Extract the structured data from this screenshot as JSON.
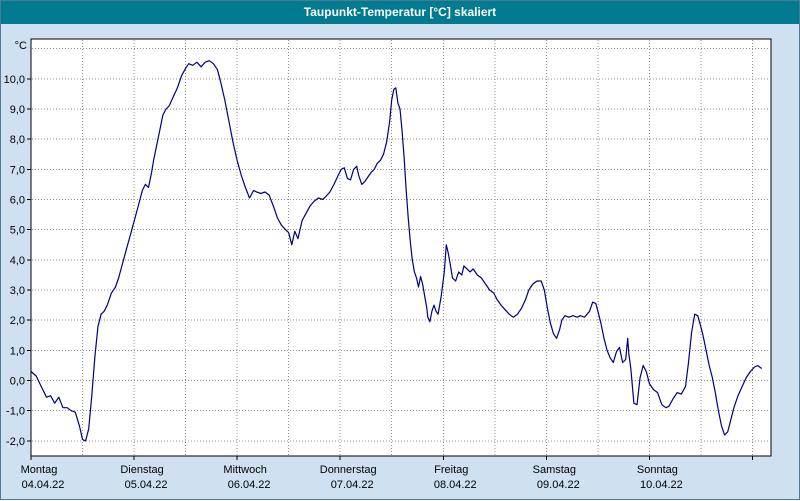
{
  "title_bar": {
    "title": "Taupunkt-Temperatur [°C] skaliert"
  },
  "chart_data": {
    "type": "line",
    "title": "Taupunkt-Temperatur [°C] skaliert",
    "unit_label": "°C",
    "xlabel": "",
    "ylabel": "°C",
    "line_color": "#000080",
    "plot_background": "#ffffff",
    "page_background": "#cfe0f0",
    "titlebar_background": "#007b8f",
    "grid_color": "#8f8f8f",
    "axis_color": "#000000",
    "text_color": "#000000",
    "grid_style": "dotted",
    "legend": "none",
    "ylim": [
      -2.5,
      11.32
    ],
    "yticks": [
      -2,
      -1,
      0,
      1,
      2,
      3,
      4,
      5,
      6,
      7,
      8,
      9,
      10
    ],
    "ytick_labels": [
      "-2,0",
      "-1,0",
      "0,0",
      "1,0",
      "2,0",
      "3,0",
      "4,0",
      "5,0",
      "6,0",
      "7,0",
      "8,0",
      "9,0",
      "10,0"
    ],
    "xlim_days": [
      0,
      7.18
    ],
    "x_day_ticks": [
      0,
      1,
      2,
      3,
      4,
      5,
      6
    ],
    "x_tick_days": [
      0,
      1,
      2,
      3,
      4,
      5,
      6,
      7
    ],
    "x_day_names": [
      "Montag",
      "Dienstag",
      "Mittwoch",
      "Donnerstag",
      "Freitag",
      "Samstag",
      "Sonntag"
    ],
    "x_day_dates": [
      "04.04.22",
      "05.04.22",
      "06.04.22",
      "07.04.22",
      "08.04.22",
      "09.04.22",
      "10.04.22"
    ],
    "minor_x_interval_days": 0.5,
    "x_gridlines_end_day": 7.0,
    "series": [
      {
        "name": "Taupunkt",
        "points": [
          [
            0.0,
            0.3
          ],
          [
            0.05,
            0.15
          ],
          [
            0.1,
            -0.2
          ],
          [
            0.15,
            -0.55
          ],
          [
            0.19,
            -0.5
          ],
          [
            0.23,
            -0.75
          ],
          [
            0.27,
            -0.55
          ],
          [
            0.31,
            -0.9
          ],
          [
            0.35,
            -0.9
          ],
          [
            0.39,
            -1.0
          ],
          [
            0.43,
            -1.05
          ],
          [
            0.47,
            -1.5
          ],
          [
            0.5,
            -1.95
          ],
          [
            0.53,
            -2.0
          ],
          [
            0.56,
            -1.6
          ],
          [
            0.59,
            -0.5
          ],
          [
            0.62,
            0.8
          ],
          [
            0.65,
            1.8
          ],
          [
            0.68,
            2.2
          ],
          [
            0.71,
            2.3
          ],
          [
            0.74,
            2.5
          ],
          [
            0.78,
            2.9
          ],
          [
            0.82,
            3.1
          ],
          [
            0.85,
            3.4
          ],
          [
            0.89,
            3.9
          ],
          [
            0.93,
            4.4
          ],
          [
            0.97,
            4.9
          ],
          [
            1.01,
            5.4
          ],
          [
            1.05,
            5.9
          ],
          [
            1.08,
            6.3
          ],
          [
            1.11,
            6.5
          ],
          [
            1.14,
            6.4
          ],
          [
            1.17,
            6.9
          ],
          [
            1.19,
            7.3
          ],
          [
            1.22,
            7.8
          ],
          [
            1.25,
            8.3
          ],
          [
            1.28,
            8.8
          ],
          [
            1.31,
            9.0
          ],
          [
            1.34,
            9.1
          ],
          [
            1.38,
            9.4
          ],
          [
            1.42,
            9.7
          ],
          [
            1.46,
            10.1
          ],
          [
            1.5,
            10.35
          ],
          [
            1.53,
            10.5
          ],
          [
            1.57,
            10.45
          ],
          [
            1.61,
            10.55
          ],
          [
            1.65,
            10.4
          ],
          [
            1.69,
            10.55
          ],
          [
            1.73,
            10.6
          ],
          [
            1.77,
            10.5
          ],
          [
            1.81,
            10.3
          ],
          [
            1.84,
            9.9
          ],
          [
            1.88,
            9.3
          ],
          [
            1.92,
            8.6
          ],
          [
            1.96,
            7.9
          ],
          [
            2.0,
            7.3
          ],
          [
            2.04,
            6.8
          ],
          [
            2.08,
            6.4
          ],
          [
            2.12,
            6.05
          ],
          [
            2.16,
            6.3
          ],
          [
            2.19,
            6.25
          ],
          [
            2.23,
            6.2
          ],
          [
            2.27,
            6.25
          ],
          [
            2.31,
            6.15
          ],
          [
            2.35,
            5.8
          ],
          [
            2.39,
            5.4
          ],
          [
            2.43,
            5.15
          ],
          [
            2.47,
            5.0
          ],
          [
            2.5,
            4.9
          ],
          [
            2.53,
            4.5
          ],
          [
            2.56,
            4.95
          ],
          [
            2.59,
            4.7
          ],
          [
            2.63,
            5.3
          ],
          [
            2.67,
            5.55
          ],
          [
            2.71,
            5.8
          ],
          [
            2.75,
            5.95
          ],
          [
            2.79,
            6.05
          ],
          [
            2.83,
            6.0
          ],
          [
            2.86,
            6.1
          ],
          [
            2.9,
            6.25
          ],
          [
            2.94,
            6.5
          ],
          [
            2.98,
            6.8
          ],
          [
            3.01,
            7.0
          ],
          [
            3.04,
            7.05
          ],
          [
            3.07,
            6.7
          ],
          [
            3.1,
            6.65
          ],
          [
            3.13,
            7.0
          ],
          [
            3.16,
            7.1
          ],
          [
            3.18,
            6.8
          ],
          [
            3.21,
            6.5
          ],
          [
            3.24,
            6.6
          ],
          [
            3.27,
            6.75
          ],
          [
            3.3,
            6.9
          ],
          [
            3.33,
            7.0
          ],
          [
            3.36,
            7.2
          ],
          [
            3.39,
            7.3
          ],
          [
            3.42,
            7.5
          ],
          [
            3.45,
            7.9
          ],
          [
            3.48,
            8.6
          ],
          [
            3.5,
            9.3
          ],
          [
            3.52,
            9.65
          ],
          [
            3.54,
            9.7
          ],
          [
            3.56,
            9.2
          ],
          [
            3.58,
            9.0
          ],
          [
            3.6,
            8.3
          ],
          [
            3.62,
            7.4
          ],
          [
            3.64,
            6.3
          ],
          [
            3.66,
            5.4
          ],
          [
            3.68,
            4.6
          ],
          [
            3.7,
            4.0
          ],
          [
            3.72,
            3.6
          ],
          [
            3.74,
            3.4
          ],
          [
            3.76,
            3.1
          ],
          [
            3.78,
            3.45
          ],
          [
            3.8,
            3.2
          ],
          [
            3.82,
            2.8
          ],
          [
            3.84,
            2.4
          ],
          [
            3.85,
            2.1
          ],
          [
            3.87,
            1.95
          ],
          [
            3.89,
            2.3
          ],
          [
            3.91,
            2.5
          ],
          [
            3.93,
            2.3
          ],
          [
            3.95,
            2.2
          ],
          [
            3.98,
            2.8
          ],
          [
            4.01,
            3.6
          ],
          [
            4.03,
            4.5
          ],
          [
            4.05,
            4.2
          ],
          [
            4.07,
            3.8
          ],
          [
            4.09,
            3.4
          ],
          [
            4.12,
            3.3
          ],
          [
            4.15,
            3.6
          ],
          [
            4.18,
            3.5
          ],
          [
            4.2,
            3.8
          ],
          [
            4.23,
            3.7
          ],
          [
            4.26,
            3.6
          ],
          [
            4.29,
            3.7
          ],
          [
            4.33,
            3.5
          ],
          [
            4.37,
            3.4
          ],
          [
            4.41,
            3.2
          ],
          [
            4.45,
            3.0
          ],
          [
            4.49,
            2.9
          ],
          [
            4.52,
            2.7
          ],
          [
            4.56,
            2.5
          ],
          [
            4.6,
            2.35
          ],
          [
            4.64,
            2.2
          ],
          [
            4.68,
            2.1
          ],
          [
            4.72,
            2.2
          ],
          [
            4.76,
            2.4
          ],
          [
            4.8,
            2.7
          ],
          [
            4.83,
            3.0
          ],
          [
            4.87,
            3.2
          ],
          [
            4.91,
            3.3
          ],
          [
            4.95,
            3.3
          ],
          [
            4.98,
            3.0
          ],
          [
            5.01,
            2.4
          ],
          [
            5.04,
            1.9
          ],
          [
            5.07,
            1.55
          ],
          [
            5.1,
            1.4
          ],
          [
            5.13,
            1.7
          ],
          [
            5.15,
            2.0
          ],
          [
            5.18,
            2.15
          ],
          [
            5.22,
            2.1
          ],
          [
            5.26,
            2.15
          ],
          [
            5.3,
            2.1
          ],
          [
            5.33,
            2.15
          ],
          [
            5.37,
            2.1
          ],
          [
            5.42,
            2.3
          ],
          [
            5.45,
            2.6
          ],
          [
            5.48,
            2.55
          ],
          [
            5.5,
            2.3
          ],
          [
            5.53,
            1.9
          ],
          [
            5.56,
            1.4
          ],
          [
            5.59,
            1.0
          ],
          [
            5.62,
            0.75
          ],
          [
            5.65,
            0.6
          ],
          [
            5.68,
            0.95
          ],
          [
            5.71,
            1.1
          ],
          [
            5.74,
            0.6
          ],
          [
            5.77,
            0.7
          ],
          [
            5.79,
            1.4
          ],
          [
            5.8,
            0.9
          ],
          [
            5.82,
            0.4
          ],
          [
            5.85,
            -0.75
          ],
          [
            5.88,
            -0.8
          ],
          [
            5.91,
            0.1
          ],
          [
            5.94,
            0.5
          ],
          [
            5.97,
            0.3
          ],
          [
            6.0,
            -0.1
          ],
          [
            6.04,
            -0.3
          ],
          [
            6.08,
            -0.4
          ],
          [
            6.12,
            -0.8
          ],
          [
            6.16,
            -0.9
          ],
          [
            6.19,
            -0.85
          ],
          [
            6.23,
            -0.6
          ],
          [
            6.27,
            -0.4
          ],
          [
            6.31,
            -0.45
          ],
          [
            6.35,
            -0.2
          ],
          [
            6.38,
            0.6
          ],
          [
            6.41,
            1.6
          ],
          [
            6.44,
            2.2
          ],
          [
            6.47,
            2.15
          ],
          [
            6.49,
            1.9
          ],
          [
            6.52,
            1.5
          ],
          [
            6.55,
            1.0
          ],
          [
            6.58,
            0.5
          ],
          [
            6.61,
            0.1
          ],
          [
            6.64,
            -0.4
          ],
          [
            6.67,
            -1.0
          ],
          [
            6.7,
            -1.5
          ],
          [
            6.73,
            -1.8
          ],
          [
            6.76,
            -1.7
          ],
          [
            6.79,
            -1.3
          ],
          [
            6.82,
            -0.9
          ],
          [
            6.86,
            -0.5
          ],
          [
            6.9,
            -0.2
          ],
          [
            6.94,
            0.1
          ],
          [
            6.98,
            0.3
          ],
          [
            7.02,
            0.45
          ],
          [
            7.05,
            0.5
          ],
          [
            7.09,
            0.4
          ]
        ]
      }
    ]
  }
}
